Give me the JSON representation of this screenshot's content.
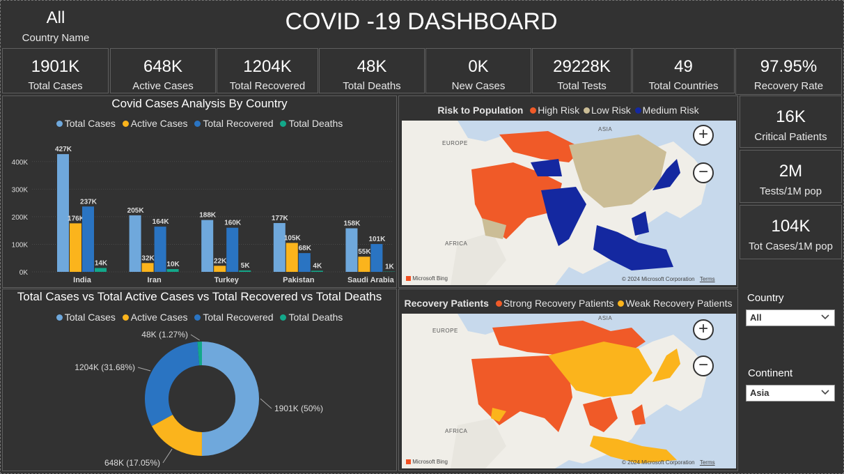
{
  "header": {
    "title": "COVID -19 DASHBOARD",
    "country_value": "All",
    "country_label": "Country Name"
  },
  "kpis": [
    {
      "value": "1901K",
      "label": "Total Cases"
    },
    {
      "value": "648K",
      "label": "Active Cases"
    },
    {
      "value": "1204K",
      "label": "Total Recovered"
    },
    {
      "value": "48K",
      "label": "Total Deaths"
    },
    {
      "value": "0K",
      "label": "New Cases"
    },
    {
      "value": "29228K",
      "label": "Total Tests"
    },
    {
      "value": "49",
      "label": "Total Countries"
    },
    {
      "value": "97.95%",
      "label": "Recovery Rate"
    }
  ],
  "side_kpis": [
    {
      "value": "16K",
      "label": "Critical Patients"
    },
    {
      "value": "2M",
      "label": "Tests/1M pop"
    },
    {
      "value": "104K",
      "label": "Tot Cases/1M pop"
    }
  ],
  "colors": {
    "total_cases": "#6fa8dc",
    "active_cases": "#fbb41c",
    "total_recovered": "#2a74c2",
    "total_deaths": "#13a88a",
    "high_risk": "#f05a28",
    "low_risk": "#cbbd96",
    "medium_risk": "#1428a0",
    "strong_recovery": "#f05a28",
    "weak_recovery": "#fbb41c"
  },
  "chart_data": [
    {
      "type": "bar",
      "title": "Covid Cases Analysis By Country",
      "categories": [
        "India",
        "Iran",
        "Turkey",
        "Pakistan",
        "Saudi Arabia"
      ],
      "series": [
        {
          "name": "Total Cases",
          "values": [
            427,
            205,
            188,
            177,
            158
          ],
          "labels": [
            "427K",
            "205K",
            "188K",
            "177K",
            "158K"
          ]
        },
        {
          "name": "Active Cases",
          "values": [
            176,
            32,
            22,
            105,
            55
          ],
          "labels": [
            "176K",
            "32K",
            "22K",
            "105K",
            "55K"
          ]
        },
        {
          "name": "Total Recovered",
          "values": [
            237,
            164,
            160,
            68,
            101
          ],
          "labels": [
            "237K",
            "164K",
            "160K",
            "68K",
            "101K"
          ]
        },
        {
          "name": "Total Deaths",
          "values": [
            14,
            10,
            5,
            4,
            1
          ],
          "labels": [
            "14K",
            "10K",
            "5K",
            "4K",
            "1K"
          ]
        }
      ],
      "y_ticks": [
        "0K",
        "100K",
        "200K",
        "300K",
        "400K"
      ],
      "ylim": [
        0,
        450
      ],
      "legend": "top"
    },
    {
      "type": "pie",
      "title": "Total Cases vs Total Active Cases vs Total Recovered vs Total Deaths",
      "categories": [
        "Total Cases",
        "Active Cases",
        "Total Recovered",
        "Total Deaths"
      ],
      "values": [
        1901,
        648,
        1204,
        48
      ],
      "labels": [
        "1901K (50%)",
        "648K (17.05%)",
        "1204K (31.68%)",
        "48K (1.27%)"
      ],
      "legend": "top"
    }
  ],
  "risk_map": {
    "legend_title": "Risk to Population",
    "legend_items": [
      "High Risk",
      "Low Risk",
      "Medium Risk"
    ],
    "labels": [
      "ASIA",
      "EUROPE",
      "AFRICA"
    ],
    "bing": "Microsoft Bing",
    "copyright": "© 2024 Microsoft Corporation",
    "terms": "Terms"
  },
  "recovery_map": {
    "legend_title": "Recovery Patients",
    "legend_items": [
      "Strong Recovery Patients",
      "Weak Recovery Patients"
    ],
    "labels": [
      "ASIA",
      "EUROPE",
      "AFRICA"
    ],
    "bing": "Microsoft Bing",
    "copyright": "© 2024 Microsoft Corporation",
    "terms": "Terms"
  },
  "zoom": {
    "in": "+",
    "out": "−"
  },
  "slicers": {
    "country_label": "Country",
    "country_value": "All",
    "continent_label": "Continent",
    "continent_value": "Asia"
  }
}
